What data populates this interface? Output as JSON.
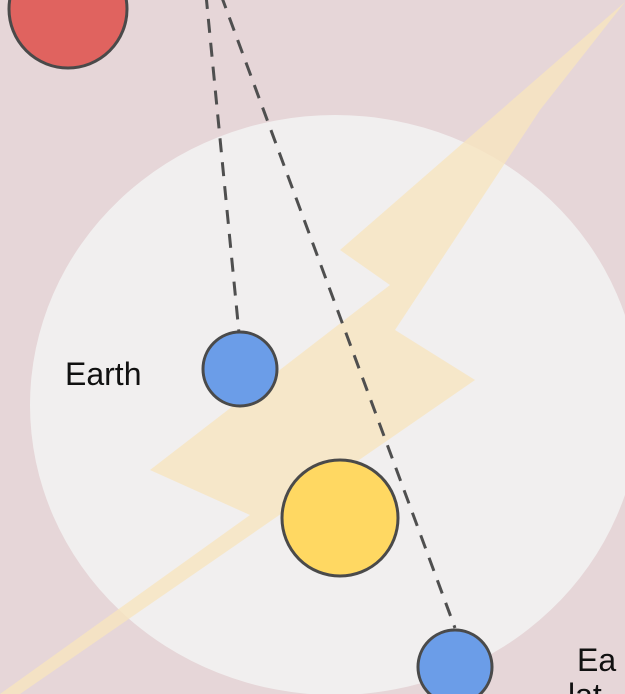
{
  "labels": {
    "earth": "Earth",
    "earth_later_line1": "Ea",
    "earth_later_line2": "lat"
  },
  "colors": {
    "background": "#e6d6d8",
    "disc": "#f2f1f1",
    "bolt": "#f7e5bf",
    "mars": "#e0635f",
    "earth": "#6b9de8",
    "sun": "#ffd862",
    "outline": "#4a4a4a",
    "sight_line": "#4f4f4f"
  }
}
